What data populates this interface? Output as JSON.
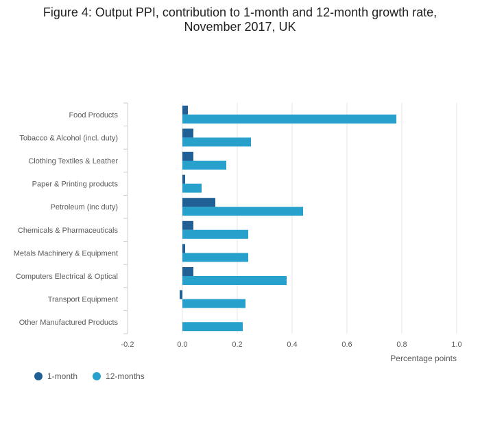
{
  "title_line1": "Figure 4: Output PPI, contribution to 1-month and 12-month growth rate,",
  "title_line2": "November 2017, UK",
  "colors": {
    "one_month": "#206095",
    "twelve_months": "#27A0CC",
    "grid": "#E6E6E6",
    "axis": "#CCCCCC"
  },
  "legend": {
    "one_month": "1-month",
    "twelve_months": "12-months"
  },
  "chart_data": {
    "type": "bar",
    "orientation": "horizontal",
    "categories": [
      "Food Products",
      "Tobacco & Alcohol (incl. duty)",
      "Clothing Textiles & Leather",
      "Paper & Printing products",
      "Petroleum (inc duty)",
      "Chemicals & Pharmaceuticals",
      "Metals Machinery & Equipment",
      "Computers Electrical & Optical",
      "Transport Equipment",
      "Other Manufactured Products"
    ],
    "series": [
      {
        "name": "1-month",
        "values": [
          0.02,
          0.04,
          0.04,
          0.01,
          0.12,
          0.04,
          0.01,
          0.04,
          -0.01,
          0.0
        ]
      },
      {
        "name": "12-months",
        "values": [
          0.78,
          0.25,
          0.16,
          0.07,
          0.44,
          0.24,
          0.24,
          0.38,
          0.23,
          0.22
        ]
      }
    ],
    "xlabel": "Percentage points",
    "ylabel": "",
    "xlim": [
      -0.2,
      1.0
    ],
    "xticks": [
      -0.2,
      0.0,
      0.2,
      0.4,
      0.6,
      0.8,
      1.0
    ],
    "xtick_labels": [
      "-0.2",
      "0.0",
      "0.2",
      "0.4",
      "0.6",
      "0.8",
      "1.0"
    ],
    "grid": true,
    "legend_position": "bottom-left"
  }
}
